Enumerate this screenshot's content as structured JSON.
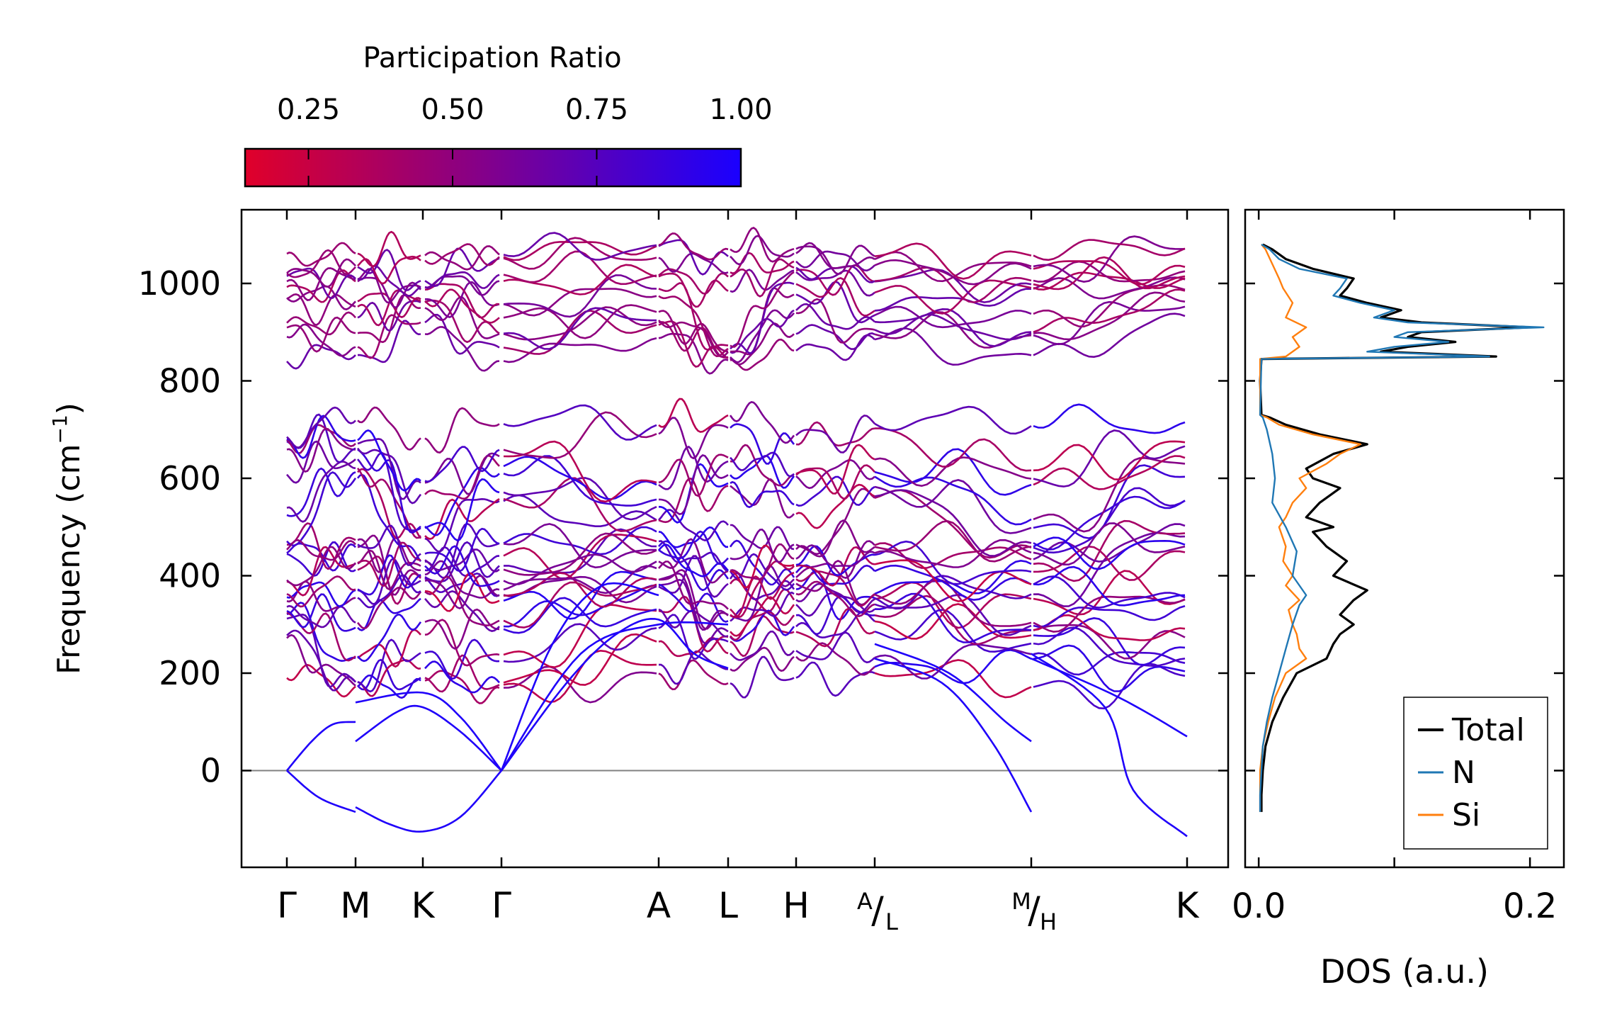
{
  "chart_data": [
    {
      "type": "line",
      "subtype": "phonon-band-structure",
      "ylabel_main": "Frequency (cm",
      "ylabel_sup": "−1",
      "ylabel_close": ")",
      "ylim": [
        -200,
        1150
      ],
      "yticks": [
        0,
        200,
        400,
        600,
        800,
        1000
      ],
      "k_labels": [
        "Γ",
        "M",
        "K",
        "Γ",
        "A",
        "L",
        "H"
      ],
      "k_label_pairs": [
        {
          "sup": "A",
          "sub": "L"
        },
        {
          "sup": "M",
          "sub": "H"
        }
      ],
      "k_label_end": "K",
      "colorbar": {
        "title": "Participation Ratio",
        "ticks": [
          "0.25",
          "0.50",
          "0.75",
          "1.00"
        ],
        "tick_values": [
          0.25,
          0.5,
          0.75,
          1.0
        ],
        "range": [
          0.14,
          1.0
        ],
        "low_color": "#e0002a",
        "mid_color": "#8a0083",
        "high_color": "#1a00ff"
      },
      "zero_line_color": "#808080",
      "band_groups": {
        "high_optical_range": [
          840,
          1080
        ],
        "mid_optical_range": [
          350,
          730
        ],
        "low_range": [
          170,
          470
        ],
        "acoustic_min": -130
      }
    },
    {
      "type": "line",
      "subtype": "density-of-states",
      "xlabel": "DOS (a.u.)",
      "xlim": [
        -0.01,
        0.225
      ],
      "xticks": [
        0.0,
        0.2
      ],
      "xtick_labels": [
        "0.0",
        "0.2"
      ],
      "ylim": [
        -200,
        1150
      ],
      "legend_position": "lower-right",
      "series": [
        {
          "name": "Total",
          "color": "#000000",
          "freq": [
            -85,
            -50,
            0,
            50,
            100,
            150,
            200,
            230,
            260,
            280,
            300,
            320,
            350,
            370,
            400,
            430,
            460,
            490,
            500,
            520,
            550,
            580,
            600,
            620,
            650,
            670,
            690,
            710,
            725,
            730,
            800,
            845,
            850,
            860,
            870,
            880,
            890,
            900,
            910,
            920,
            930,
            945,
            960,
            975,
            990,
            1010,
            1030,
            1050,
            1070,
            1080
          ],
          "values": [
            0.002,
            0.002,
            0.003,
            0.005,
            0.01,
            0.018,
            0.028,
            0.05,
            0.055,
            0.06,
            0.07,
            0.06,
            0.07,
            0.08,
            0.055,
            0.065,
            0.05,
            0.04,
            0.055,
            0.035,
            0.045,
            0.06,
            0.04,
            0.035,
            0.055,
            0.08,
            0.045,
            0.02,
            0.008,
            0.002,
            0.001,
            0.002,
            0.175,
            0.09,
            0.11,
            0.145,
            0.11,
            0.12,
            0.2,
            0.12,
            0.09,
            0.105,
            0.08,
            0.06,
            0.065,
            0.07,
            0.04,
            0.02,
            0.01,
            0.003
          ]
        },
        {
          "name": "N",
          "color": "#1f77b4",
          "freq": [
            -85,
            -50,
            0,
            50,
            100,
            150,
            200,
            250,
            300,
            340,
            360,
            400,
            450,
            500,
            550,
            600,
            650,
            700,
            725,
            730,
            845,
            850,
            860,
            870,
            880,
            890,
            900,
            910,
            920,
            930,
            945,
            960,
            975,
            990,
            1010,
            1030,
            1050,
            1070,
            1080
          ],
          "values": [
            0.001,
            0.001,
            0.002,
            0.003,
            0.006,
            0.01,
            0.015,
            0.02,
            0.025,
            0.03,
            0.035,
            0.025,
            0.028,
            0.02,
            0.01,
            0.012,
            0.01,
            0.006,
            0.003,
            0.001,
            0.002,
            0.17,
            0.08,
            0.1,
            0.14,
            0.1,
            0.11,
            0.21,
            0.11,
            0.085,
            0.1,
            0.075,
            0.055,
            0.06,
            0.065,
            0.03,
            0.015,
            0.008,
            0.002
          ]
        },
        {
          "name": "Si",
          "color": "#ff7f0e",
          "freq": [
            -85,
            -50,
            0,
            50,
            100,
            150,
            200,
            230,
            250,
            280,
            300,
            330,
            350,
            380,
            400,
            430,
            460,
            500,
            520,
            550,
            580,
            600,
            630,
            650,
            670,
            690,
            710,
            725,
            730,
            845,
            850,
            870,
            890,
            910,
            930,
            960,
            990,
            1010,
            1040,
            1070,
            1080
          ],
          "values": [
            0.001,
            0.001,
            0.001,
            0.003,
            0.007,
            0.012,
            0.02,
            0.035,
            0.03,
            0.028,
            0.025,
            0.022,
            0.03,
            0.02,
            0.025,
            0.018,
            0.02,
            0.015,
            0.02,
            0.025,
            0.035,
            0.03,
            0.05,
            0.06,
            0.075,
            0.04,
            0.015,
            0.006,
            0.001,
            0.001,
            0.02,
            0.03,
            0.025,
            0.035,
            0.02,
            0.025,
            0.018,
            0.015,
            0.01,
            0.005,
            0.002
          ]
        }
      ]
    }
  ]
}
